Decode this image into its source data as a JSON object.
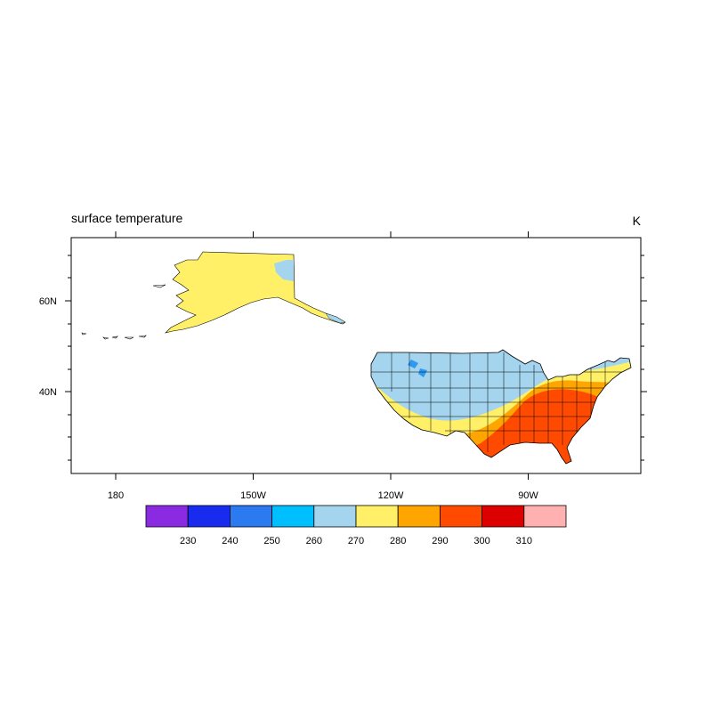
{
  "map": {
    "title": "surface temperature",
    "units": "K",
    "x_ticks": [
      {
        "lon": 180,
        "label": "180"
      },
      {
        "lon": -150,
        "label": "150W"
      },
      {
        "lon": -120,
        "label": "120W"
      },
      {
        "lon": -90,
        "label": "90W"
      }
    ],
    "y_ticks": [
      {
        "lat": 60,
        "label": "60N"
      },
      {
        "lat": 40,
        "label": "40N"
      }
    ],
    "colorbar": {
      "colors": [
        "#8a2be2",
        "#1a2bf0",
        "#2b7af0",
        "#00bfff",
        "#a4d4ee",
        "#fff068",
        "#ffa500",
        "#ff4a00",
        "#dd0000",
        "#ffb0b0"
      ],
      "levels": [
        "230",
        "240",
        "250",
        "260",
        "270",
        "280",
        "290",
        "300",
        "310"
      ]
    }
  }
}
